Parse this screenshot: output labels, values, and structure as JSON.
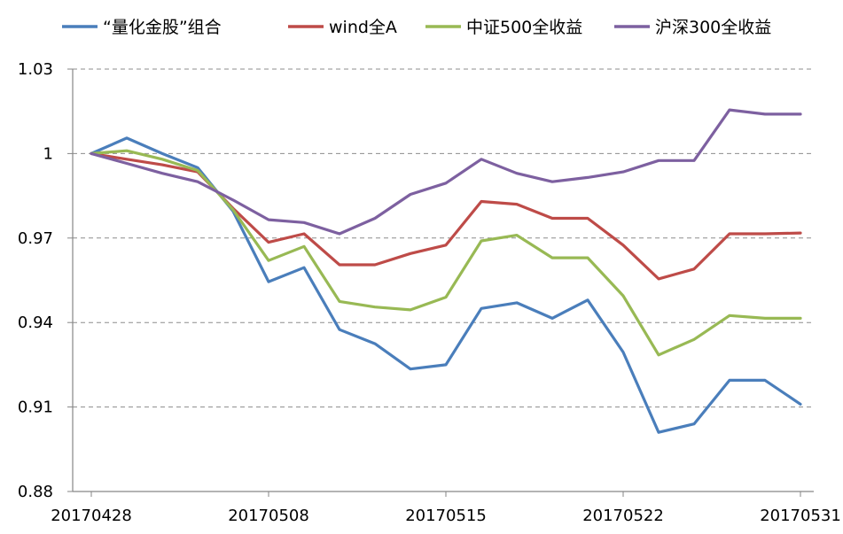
{
  "chart_data": {
    "type": "line",
    "title": "",
    "xlabel": "",
    "ylabel": "",
    "ylim": [
      0.88,
      1.03
    ],
    "yticks": [
      "0.88",
      "0.91",
      "0.94",
      "0.97",
      "1",
      "1.03"
    ],
    "xtick_labels": [
      "20170428",
      "20170508",
      "20170515",
      "20170522",
      "20170531"
    ],
    "grid": "horizontal dashed",
    "legend_position": "top",
    "series": [
      {
        "name": "“量化金股”组合",
        "color": "#4a7ebb",
        "values": [
          1.0,
          1.0055,
          1.0,
          0.995,
          0.9795,
          0.9545,
          0.9595,
          0.9375,
          0.9325,
          0.9235,
          0.925,
          0.945,
          0.947,
          0.9415,
          0.948,
          0.9295,
          0.901,
          0.904,
          0.9195,
          0.9195,
          0.911
        ]
      },
      {
        "name": "wind全A",
        "color": "#be4b48",
        "values": [
          1.0,
          0.998,
          0.996,
          0.9935,
          0.9805,
          0.9685,
          0.9715,
          0.9605,
          0.9605,
          0.9645,
          0.9675,
          0.983,
          0.982,
          0.977,
          0.977,
          0.9675,
          0.9555,
          0.959,
          0.9715,
          0.9715,
          0.9718
        ]
      },
      {
        "name": "中证500全收益",
        "color": "#98b954",
        "values": [
          1.0,
          1.001,
          0.998,
          0.994,
          0.98,
          0.962,
          0.967,
          0.9475,
          0.9455,
          0.9445,
          0.949,
          0.969,
          0.971,
          0.963,
          0.963,
          0.9495,
          0.9285,
          0.934,
          0.9425,
          0.9415,
          0.9415
        ]
      },
      {
        "name": "沪深300全收益",
        "color": "#7d60a0",
        "values": [
          1.0,
          0.9965,
          0.993,
          0.99,
          0.9835,
          0.9765,
          0.9755,
          0.9715,
          0.977,
          0.9855,
          0.9895,
          0.998,
          0.993,
          0.99,
          0.9915,
          0.9935,
          0.9975,
          0.9975,
          1.0155,
          1.014,
          1.014
        ]
      }
    ]
  }
}
